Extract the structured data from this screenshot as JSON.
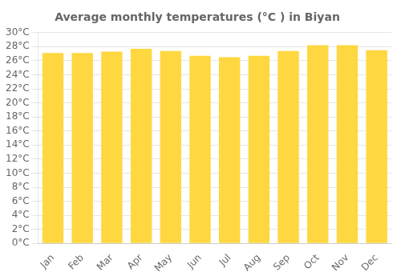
{
  "chart_data": {
    "type": "bar",
    "title": "Average monthly temperatures (°C ) in Biyan",
    "categories": [
      "Jan",
      "Feb",
      "Mar",
      "Apr",
      "May",
      "Jun",
      "Jul",
      "Aug",
      "Sep",
      "Oct",
      "Nov",
      "Dec"
    ],
    "values": [
      27.1,
      27.1,
      27.3,
      27.7,
      27.4,
      26.7,
      26.5,
      26.7,
      27.4,
      28.2,
      28.2,
      27.5
    ],
    "color": "#FFD740",
    "ylim": [
      0,
      30
    ],
    "yticks": [
      {
        "value": 0,
        "label": "0°C"
      },
      {
        "value": 2,
        "label": "2°C"
      },
      {
        "value": 4,
        "label": "4°C"
      },
      {
        "value": 6,
        "label": "6°C"
      },
      {
        "value": 8,
        "label": "8°C"
      },
      {
        "value": 10,
        "label": "10°C"
      },
      {
        "value": 12,
        "label": "12°C"
      },
      {
        "value": 14,
        "label": "14°C"
      },
      {
        "value": 16,
        "label": "16°C"
      },
      {
        "value": 18,
        "label": "18°C"
      },
      {
        "value": 20,
        "label": "20°C"
      },
      {
        "value": 22,
        "label": "22°C"
      },
      {
        "value": 24,
        "label": "24°C"
      },
      {
        "value": 26,
        "label": "26°C"
      },
      {
        "value": 28,
        "label": "28°C"
      },
      {
        "value": 30,
        "label": "30°C"
      }
    ],
    "grid": true
  }
}
